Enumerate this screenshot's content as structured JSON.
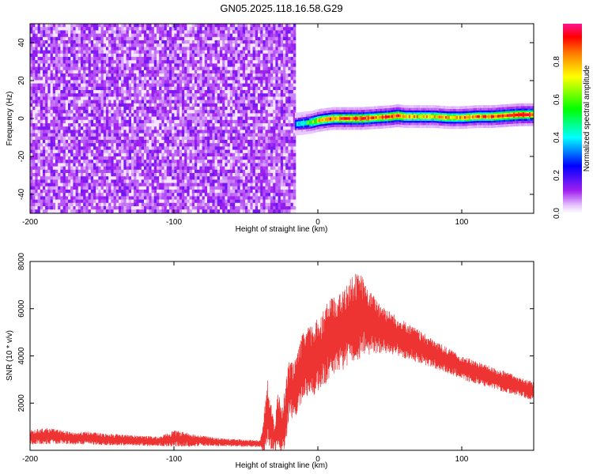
{
  "title": "GN05.2025.118.16.58.G29",
  "chart_data": [
    {
      "type": "heatmap",
      "title": "GN05.2025.118.16.58.G29",
      "xlabel": "Height of straight line (km)",
      "ylabel": "Frequency (Hz)",
      "xlim": [
        -200,
        150
      ],
      "ylim": [
        -50,
        50
      ],
      "x_ticks": [
        -200,
        -100,
        0,
        100
      ],
      "x_tick_labels": [
        "-200",
        "-100",
        "0",
        "100"
      ],
      "y_ticks": [
        -40,
        -20,
        0,
        20,
        40
      ],
      "y_tick_labels": [
        "-40",
        "-20",
        "0",
        "20",
        "40"
      ],
      "noise_region_x": [
        -200,
        -16
      ],
      "signal_track": {
        "x": [
          -16,
          -5,
          0,
          10,
          20,
          30,
          40,
          50,
          55,
          60,
          70,
          80,
          90,
          100,
          110,
          120,
          130,
          140,
          150
        ],
        "frequency": [
          -3,
          -2,
          -1,
          0,
          0,
          0,
          0.5,
          1,
          1.5,
          1,
          1,
          1,
          0.5,
          0.5,
          1,
          1,
          1.5,
          2,
          2
        ],
        "amplitude": [
          0.35,
          0.6,
          0.75,
          0.85,
          0.9,
          0.9,
          0.85,
          0.9,
          0.95,
          0.8,
          0.75,
          0.75,
          0.8,
          0.8,
          0.8,
          0.85,
          0.9,
          0.95,
          0.95
        ]
      },
      "colorbar": {
        "label": "Normalized spectral amplitude",
        "range": [
          0,
          1
        ],
        "ticks": [
          0.0,
          0.2,
          0.4,
          0.6,
          0.8
        ],
        "tick_labels": [
          "0.0",
          "0.2",
          "0.4",
          "0.6",
          "0.8"
        ],
        "colors": [
          "#ffffff",
          "#a020f0",
          "#0000ff",
          "#00ffff",
          "#00ff00",
          "#ffff00",
          "#ff8000",
          "#ff0000",
          "#ff1493"
        ]
      }
    },
    {
      "type": "line",
      "xlabel": "Height of straight line (km)",
      "ylabel": "SNR (10 * v/v)",
      "xlim": [
        -200,
        150
      ],
      "ylim": [
        0,
        8000
      ],
      "x_ticks": [
        -200,
        -100,
        0,
        100
      ],
      "x_tick_labels": [
        "-200",
        "-100",
        "0",
        "100"
      ],
      "y_ticks": [
        2000,
        4000,
        6000,
        8000
      ],
      "y_tick_labels": [
        "2000",
        "4000",
        "6000",
        "8000"
      ],
      "series": [
        {
          "color": "#ee3333",
          "x": [
            -200,
            -190,
            -180,
            -170,
            -160,
            -150,
            -140,
            -130,
            -120,
            -110,
            -100,
            -90,
            -80,
            -70,
            -60,
            -50,
            -40,
            -38,
            -35,
            -32,
            -30,
            -28,
            -25,
            -22,
            -20,
            -18,
            -15,
            -12,
            -10,
            -5,
            0,
            5,
            10,
            15,
            20,
            25,
            30,
            35,
            40,
            50,
            60,
            70,
            80,
            90,
            100,
            110,
            120,
            130,
            140,
            150
          ],
          "y": [
            550,
            600,
            580,
            500,
            520,
            470,
            450,
            420,
            400,
            380,
            500,
            450,
            400,
            350,
            320,
            300,
            280,
            500,
            1600,
            900,
            500,
            1300,
            800,
            1600,
            2700,
            2500,
            2700,
            3300,
            3600,
            3800,
            4000,
            4400,
            4800,
            5000,
            5200,
            5600,
            5700,
            5400,
            5300,
            5000,
            4700,
            4400,
            4100,
            3800,
            3500,
            3300,
            3100,
            2900,
            2700,
            2500
          ],
          "amplitude": [
            300,
            350,
            300,
            250,
            280,
            250,
            250,
            220,
            220,
            200,
            350,
            300,
            220,
            180,
            160,
            150,
            150,
            600,
            1500,
            900,
            500,
            1400,
            900,
            1400,
            1200,
            1200,
            1200,
            1400,
            1400,
            1500,
            1600,
            1700,
            1700,
            1600,
            1800,
            1900,
            1800,
            1400,
            1200,
            900,
            800,
            700,
            600,
            550,
            500,
            500,
            450,
            450,
            400,
            400
          ]
        }
      ]
    }
  ]
}
